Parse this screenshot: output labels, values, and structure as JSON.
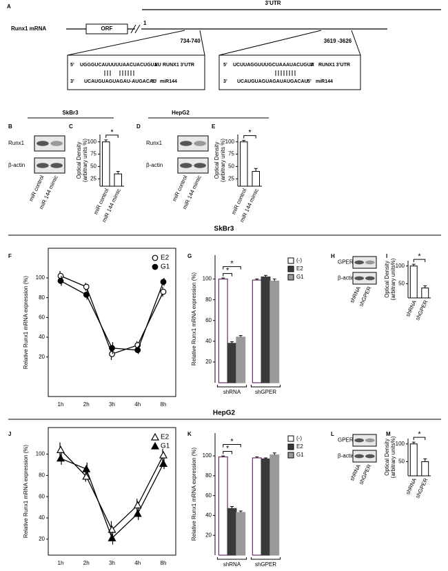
{
  "diagram": {
    "panel": "A",
    "utr_label": "3’UTR",
    "mrna_label": "Runx1 mRNA",
    "orf": "ORF",
    "start": "1",
    "five_prime": "5’",
    "three_prime": "3’",
    "sites": [
      {
        "position": "734-740",
        "utr_seq": "UGGGUCAUUUUUAACUACUGUAU",
        "mir_seq": "UCAUGUAGUAGAU-AUGACAU",
        "utr_name": "RUNX1 3’UTR",
        "mir_name": "miR144"
      },
      {
        "position": "3619 -3626",
        "utr_seq": "UCUUAGGUUUGCUAAAUACUGUA",
        "mir_seq": "UCAUGUAGUAGAUAUGACAU",
        "utr_name": "RUNX1 3’UTR",
        "mir_name": "miR144"
      }
    ]
  },
  "cell_lines": [
    "SkBr3",
    "HepG2"
  ],
  "section_headers": [
    "SkBr3",
    "HepG2"
  ],
  "blots": [
    {
      "panel": "B",
      "bands": [
        "Runx1",
        "β-actin"
      ],
      "lanes": [
        "miR control",
        "miR 144 mimic"
      ]
    },
    {
      "panel": "D",
      "bands": [
        "Runx1",
        "β-actin"
      ],
      "lanes": [
        "miR control",
        "miR 144 mimic"
      ]
    },
    {
      "panel": "H",
      "bands": [
        "GPER",
        "β-actin"
      ],
      "lanes": [
        "shRNA",
        "shGPER"
      ]
    },
    {
      "panel": "L",
      "bands": [
        "GPER",
        "β-actin"
      ],
      "lanes": [
        "shRNA",
        "shGPER"
      ]
    }
  ],
  "chart_data": [
    {
      "type": "bar",
      "panel": "C",
      "y_label": [
        "Optical Density",
        "(arbitrary units %)"
      ],
      "categories": [
        "miR control",
        "miR 144 mimic"
      ],
      "values": [
        100,
        35
      ],
      "errors": [
        4,
        5
      ],
      "color": "#ffffff",
      "ylim": [
        10,
        115
      ],
      "yticks": [
        25,
        50,
        75,
        100
      ],
      "annotation": "*"
    },
    {
      "type": "bar",
      "panel": "E",
      "y_label": [
        "Optical Density",
        "(arbitrary units %)"
      ],
      "categories": [
        "miR control",
        "miR 144 mimic"
      ],
      "values": [
        100,
        40
      ],
      "errors": [
        3,
        6
      ],
      "color": "#ffffff",
      "ylim": [
        10,
        115
      ],
      "yticks": [
        25,
        50,
        75,
        100
      ],
      "annotation": "*"
    },
    {
      "type": "line",
      "panel": "F",
      "marker": "circle",
      "y_label": "Relative Runx1 mRNA expression (%)",
      "categories": [
        "1h",
        "2h",
        "3h",
        "4h",
        "8h"
      ],
      "series": [
        {
          "name": "E2",
          "color": "#000000",
          "fill": "#ffffff",
          "values": [
            102,
            91,
            23,
            32,
            86
          ],
          "errors": [
            5,
            4,
            6,
            4,
            5
          ]
        },
        {
          "name": "G1",
          "color": "#000000",
          "fill": "#000000",
          "values": [
            97,
            83,
            29,
            27,
            96
          ],
          "errors": [
            5,
            5,
            6,
            4,
            4
          ]
        }
      ],
      "ylim": [
        -20,
        130
      ],
      "yticks": [
        20,
        40,
        60,
        80,
        100
      ]
    },
    {
      "type": "grouped_bar",
      "panel": "G",
      "y_label": "Relative Runx1 mRNA  expression (%)",
      "categories": [
        "shRNA",
        "shGPER"
      ],
      "series": [
        {
          "name": "(-)",
          "color": "#ffffff",
          "values": [
            100,
            99
          ],
          "errors": [
            1,
            1
          ]
        },
        {
          "name": "E2",
          "color": "#3a3a3a",
          "values": [
            38,
            102
          ],
          "errors": [
            1.5,
            1.5
          ]
        },
        {
          "name": "G1",
          "color": "#9a9a9a",
          "values": [
            44,
            98
          ],
          "errors": [
            1.5,
            2
          ]
        }
      ],
      "ylim": [
        0,
        123
      ],
      "yticks": [
        20,
        40,
        60,
        80,
        100
      ],
      "annotations": [
        "*",
        "*"
      ]
    },
    {
      "type": "bar",
      "panel": "I",
      "y_label": [
        "Optical Density",
        "(arbitrary units%)"
      ],
      "categories": [
        "shRNA",
        "shGPER"
      ],
      "values": [
        100,
        38
      ],
      "errors": [
        5,
        6
      ],
      "color": "#ffffff",
      "ylim": [
        10,
        115
      ],
      "yticks": [
        50,
        100
      ],
      "annotation": "*"
    },
    {
      "type": "line",
      "panel": "J",
      "marker": "triangle",
      "y_label": "Relative Runx1 mRNA expression (%)",
      "categories": [
        "1h",
        "2h",
        "3h",
        "4h",
        "8h"
      ],
      "series": [
        {
          "name": "E2",
          "color": "#000000",
          "fill": "#ffffff",
          "values": [
            104,
            79,
            29,
            52,
            99
          ],
          "errors": [
            7,
            5,
            8,
            6,
            6
          ]
        },
        {
          "name": "G1",
          "color": "#000000",
          "fill": "#000000",
          "values": [
            96,
            86,
            21,
            44,
            91
          ],
          "errors": [
            6,
            6,
            6,
            6,
            5
          ]
        }
      ],
      "ylim": [
        5,
        125
      ],
      "yticks": [
        20,
        40,
        60,
        80,
        100
      ]
    },
    {
      "type": "grouped_bar",
      "panel": "K",
      "y_label": "Relative Runx1 mRNA expression (%)",
      "categories": [
        "shRNA",
        "shGPER"
      ],
      "series": [
        {
          "name": "(-)",
          "color": "#ffffff",
          "values": [
            99,
            98
          ],
          "errors": [
            1,
            1
          ]
        },
        {
          "name": "E2",
          "color": "#3a3a3a",
          "values": [
            47,
            97
          ],
          "errors": [
            2,
            1
          ]
        },
        {
          "name": "G1",
          "color": "#9a9a9a",
          "values": [
            43,
            101
          ],
          "errors": [
            1.5,
            2
          ]
        }
      ],
      "ylim": [
        0,
        123
      ],
      "yticks": [
        20,
        40,
        60,
        80,
        100
      ],
      "annotations": [
        "*",
        "*"
      ]
    },
    {
      "type": "bar",
      "panel": "M",
      "y_label": [
        "Optical Density",
        "(arbitrary units%)"
      ],
      "categories": [
        "shRNA",
        "shGPER"
      ],
      "values": [
        100,
        50
      ],
      "errors": [
        5,
        8
      ],
      "color": "#ffffff",
      "ylim": [
        10,
        115
      ],
      "yticks": [
        50,
        100
      ],
      "annotation": "*"
    }
  ]
}
